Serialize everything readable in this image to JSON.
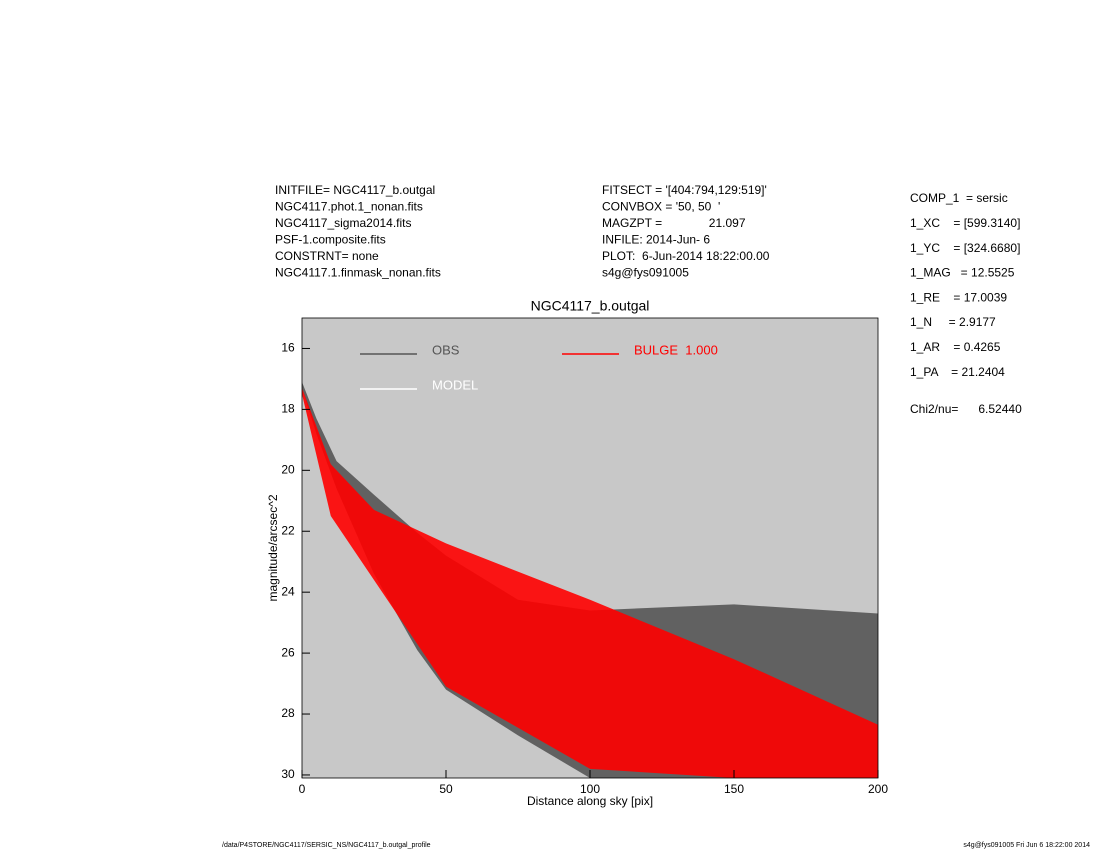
{
  "header": {
    "left": [
      "INITFILE= NGC4117_b.outgal",
      "NGC4117.phot.1_nonan.fits",
      "NGC4117_sigma2014.fits",
      "PSF-1.composite.fits",
      "CONSTRNT= none",
      "NGC4117.1.finmask_nonan.fits"
    ],
    "middle": [
      "FITSECT = '[404:794,129:519]'",
      "CONVBOX = '50, 50  '",
      "MAGZPT =              21.097",
      "INFILE: 2014-Jun- 6",
      "PLOT:  6-Jun-2014 18:22:00.00",
      "s4g@fys091005"
    ],
    "right": [
      "COMP_1  = sersic",
      "1_XC    = [599.3140]",
      "1_YC    = [324.6680]",
      "1_MAG   = 12.5525",
      "1_RE    = 17.0039",
      "1_N     = 2.9177",
      "1_AR    = 0.4265",
      "1_PA    = 21.2404"
    ],
    "chi": "Chi2/nu=      6.52440"
  },
  "footer": {
    "left": "/data/P4STORE/NGC4117/SERSIC_NS/NGC4117_b.outgal_profile",
    "right": "s4g@fys091005  Fri Jun  6 18:22:00 2014"
  },
  "chart_data": {
    "type": "band",
    "title": "NGC4117_b.outgal",
    "x_label": "Distance along sky [pix]",
    "y_label": "magnitude/arcsec^2",
    "xlim": [
      0,
      200
    ],
    "xticks": [
      0,
      50,
      100,
      150,
      200
    ],
    "ylim": [
      30.1,
      15
    ],
    "yticks": [
      16,
      18,
      20,
      22,
      24,
      26,
      28,
      30
    ],
    "background": "#c8c8c8",
    "series": [
      {
        "name": "OBS",
        "color": "#555555",
        "x": [
          0,
          5,
          12,
          25,
          40,
          50,
          75,
          100,
          150,
          200
        ],
        "values": [
          17.1,
          18.3,
          19.7,
          20.8,
          22.05,
          22.8,
          24.25,
          24.6,
          24.4,
          24.7
        ],
        "faint_values": [
          17.3,
          18.8,
          20.6,
          23.4,
          25.9,
          27.2,
          28.7,
          30.1,
          30.1,
          30.1
        ]
      },
      {
        "name": "MODEL",
        "color": "#ffffff",
        "x": [],
        "values": [],
        "faint_values": []
      },
      {
        "name": "BULGE  1.000",
        "color": "#ff0000",
        "x": [
          0,
          10,
          25,
          50,
          100,
          150,
          200
        ],
        "values": [
          17.3,
          19.8,
          21.3,
          22.4,
          24.25,
          26.2,
          28.35
        ],
        "faint_values": [
          17.5,
          21.5,
          23.6,
          27.1,
          29.8,
          30.1,
          30.1
        ]
      }
    ]
  }
}
